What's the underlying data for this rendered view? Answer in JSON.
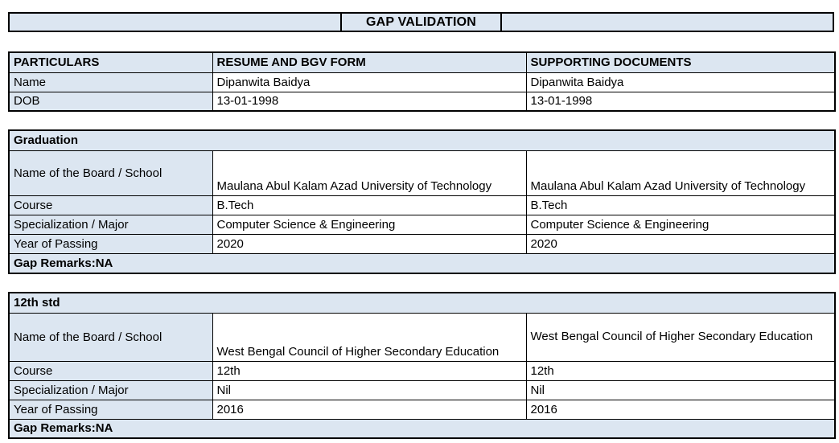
{
  "title": "GAP VALIDATION",
  "colors": {
    "header_fill": "#dce6f1",
    "border": "#000000",
    "text": "#000000",
    "background": "#ffffff"
  },
  "info_table": {
    "headers": [
      "PARTICULARS",
      "RESUME AND BGV FORM",
      "SUPPORTING DOCUMENTS"
    ],
    "rows": [
      {
        "label": "Name",
        "resume": "Dipanwita Baidya",
        "supporting": "Dipanwita Baidya"
      },
      {
        "label": "DOB",
        "resume": "13-01-1998",
        "supporting": "13-01-1998"
      }
    ]
  },
  "sections": [
    {
      "heading": "Graduation",
      "rows": [
        {
          "label": "Name of the Board / School",
          "resume": "Maulana Abul Kalam Azad University of Technology",
          "supporting": "Maulana Abul Kalam Azad University of Technology"
        },
        {
          "label": "Course",
          "resume": "B.Tech",
          "supporting": "B.Tech"
        },
        {
          "label": "Specialization / Major",
          "resume": "Computer Science & Engineering",
          "supporting": "Computer Science & Engineering"
        },
        {
          "label": "Year of Passing",
          "resume": "2020",
          "supporting": "2020"
        }
      ],
      "gap_remarks": "Gap Remarks:NA"
    },
    {
      "heading": "12th std",
      "rows": [
        {
          "label": "Name of the Board / School",
          "resume": "West Bengal Council of Higher Secondary Education",
          "supporting": "West Bengal Council of Higher Secondary Education"
        },
        {
          "label": "Course",
          "resume": "12th",
          "supporting": "12th"
        },
        {
          "label": "Specialization / Major",
          "resume": "Nil",
          "supporting": "Nil"
        },
        {
          "label": "Year of Passing",
          "resume": "2016",
          "supporting": "2016"
        }
      ],
      "gap_remarks": "Gap Remarks:NA"
    }
  ]
}
